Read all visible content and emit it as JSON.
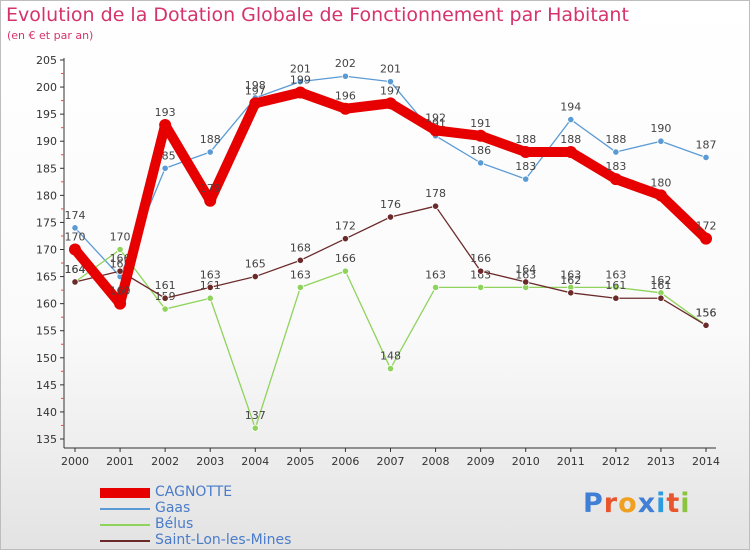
{
  "header": {
    "title": "Evolution de la Dotation Globale de Fonctionnement par Habitant",
    "subtitle": "(en € et par an)"
  },
  "logo": {
    "text": "Proxiti",
    "letter_colors": [
      "#3f7fd6",
      "#e8542b",
      "#f0a020",
      "#3f7fd6",
      "#2c9be0",
      "#e8542b",
      "#8bc43f"
    ]
  },
  "chart_data": {
    "type": "line",
    "title": "Evolution de la Dotation Globale de Fonctionnement par Habitant",
    "subtitle": "(en € et par an)",
    "xlabel": "",
    "ylabel": "",
    "x": [
      "2000",
      "2001",
      "2002",
      "2003",
      "2004",
      "2005",
      "2006",
      "2007",
      "2008",
      "2009",
      "2010",
      "2011",
      "2012",
      "2013",
      "2014"
    ],
    "ylim": [
      135,
      205
    ],
    "yticks": [
      135,
      140,
      145,
      150,
      155,
      160,
      165,
      170,
      175,
      180,
      185,
      190,
      195,
      200,
      205
    ],
    "grid": false,
    "legend_position": "bottom-left",
    "series": [
      {
        "name": "Gaas",
        "color": "#5b9bd5",
        "values": [
          174,
          165,
          185,
          188,
          198,
          201,
          202,
          201,
          191,
          186,
          183,
          194,
          188,
          190,
          187
        ]
      },
      {
        "name": "Bélus",
        "color": "#90d35c",
        "values": [
          164,
          170,
          159,
          161,
          137,
          163,
          166,
          148,
          163,
          163,
          163,
          163,
          163,
          162,
          156
        ]
      },
      {
        "name": "Saint-Lon-les-Mines",
        "color": "#6b2a2a",
        "values": [
          164,
          166,
          161,
          163,
          165,
          168,
          172,
          176,
          178,
          166,
          164,
          162,
          161,
          161,
          156
        ]
      },
      {
        "name": "CAGNOTTE",
        "color": "#e60000",
        "values": [
          170,
          160,
          193,
          179,
          197,
          199,
          196,
          197,
          192,
          191,
          188,
          188,
          183,
          180,
          172
        ]
      }
    ]
  }
}
